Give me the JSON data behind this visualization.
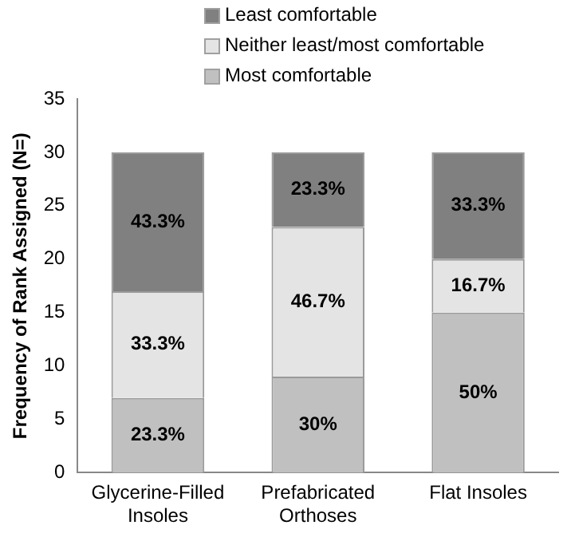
{
  "chart_data": {
    "type": "bar",
    "stacked": true,
    "ylabel": "Frequency of Rank Assigned (N=)",
    "categories": [
      "Glycerine-Filled Insoles",
      "Prefabricated Orthoses",
      "Flat Insoles"
    ],
    "series": [
      {
        "name": "Most comfortable",
        "color": "#c0c0c0",
        "values": [
          7,
          9,
          15
        ]
      },
      {
        "name": "Neither least/most comfortable",
        "color": "#e4e4e4",
        "values": [
          10,
          14,
          5
        ]
      },
      {
        "name": "Least comfortable",
        "color": "#808080",
        "values": [
          13,
          7,
          10
        ]
      }
    ],
    "annotations": [
      "23.3%",
      "30%",
      "50%",
      "33.3%",
      "46.7%",
      "16.7%",
      "43.3%",
      "23.3%",
      "33.3%"
    ],
    "ylim": [
      0,
      35
    ],
    "yticks": [
      0,
      5,
      10,
      15,
      20,
      25,
      30,
      35
    ],
    "grid": false,
    "legend": "top"
  }
}
